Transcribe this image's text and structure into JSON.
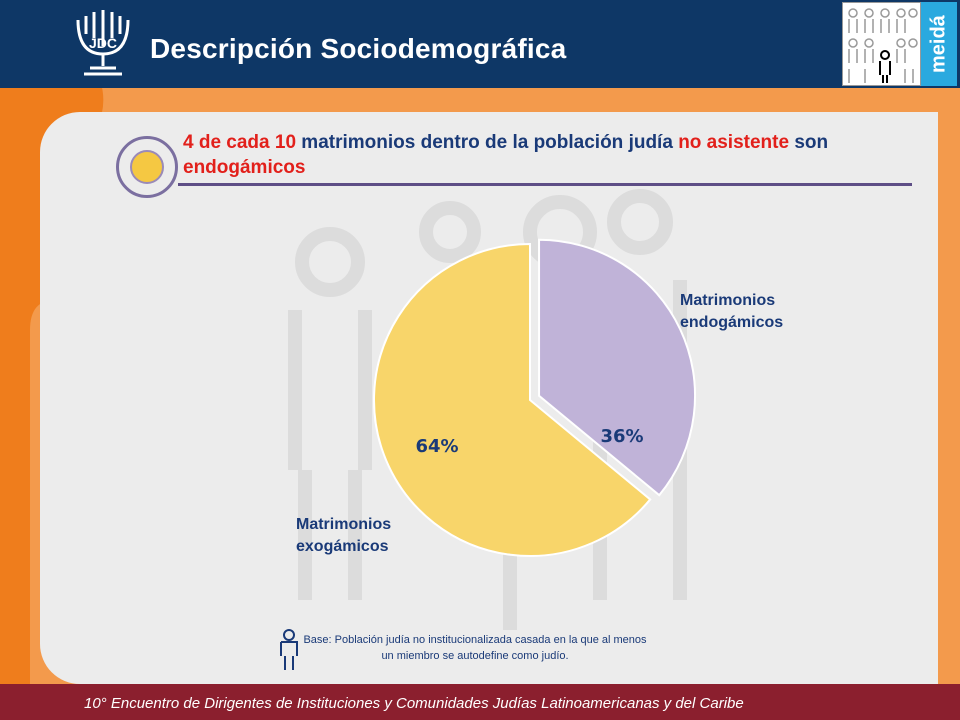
{
  "header": {
    "title": "Descripción Sociodemográfica",
    "logo_text": "JDC",
    "brand_text": "meidá"
  },
  "headline": {
    "part1": "4 de cada 10",
    "part2": " matrimonios dentro de la población judía ",
    "part3": "no asistente",
    "part4": " son ",
    "part5": "endogámicos"
  },
  "chart_data": {
    "type": "pie",
    "slices": [
      {
        "label": "Matrimonios endogámicos",
        "value": 36,
        "display": "36%",
        "color": "#c0b3d8"
      },
      {
        "label": "Matrimonios exogámicos",
        "value": 64,
        "display": "64%",
        "color": "#f8d56a"
      }
    ],
    "label_lines": {
      "endo": [
        "Matrimonios",
        "endogámicos"
      ],
      "exo": [
        "Matrimonios",
        "exogámicos"
      ]
    }
  },
  "note": "Base: Población judía no institucionalizada casada en la que al menos un miembro se autodefine como judío.",
  "footer": {
    "text": "10° Encuentro de Dirigentes de Instituciones y Comunidades Judías Latinoamericanas y del Caribe"
  },
  "colors": {
    "header_bg": "#0e3766",
    "accent_orange": "#f39a4c",
    "footer_bg": "#8b1f2e",
    "highlight_red": "#e2201b",
    "text_blue": "#1a3a78"
  }
}
